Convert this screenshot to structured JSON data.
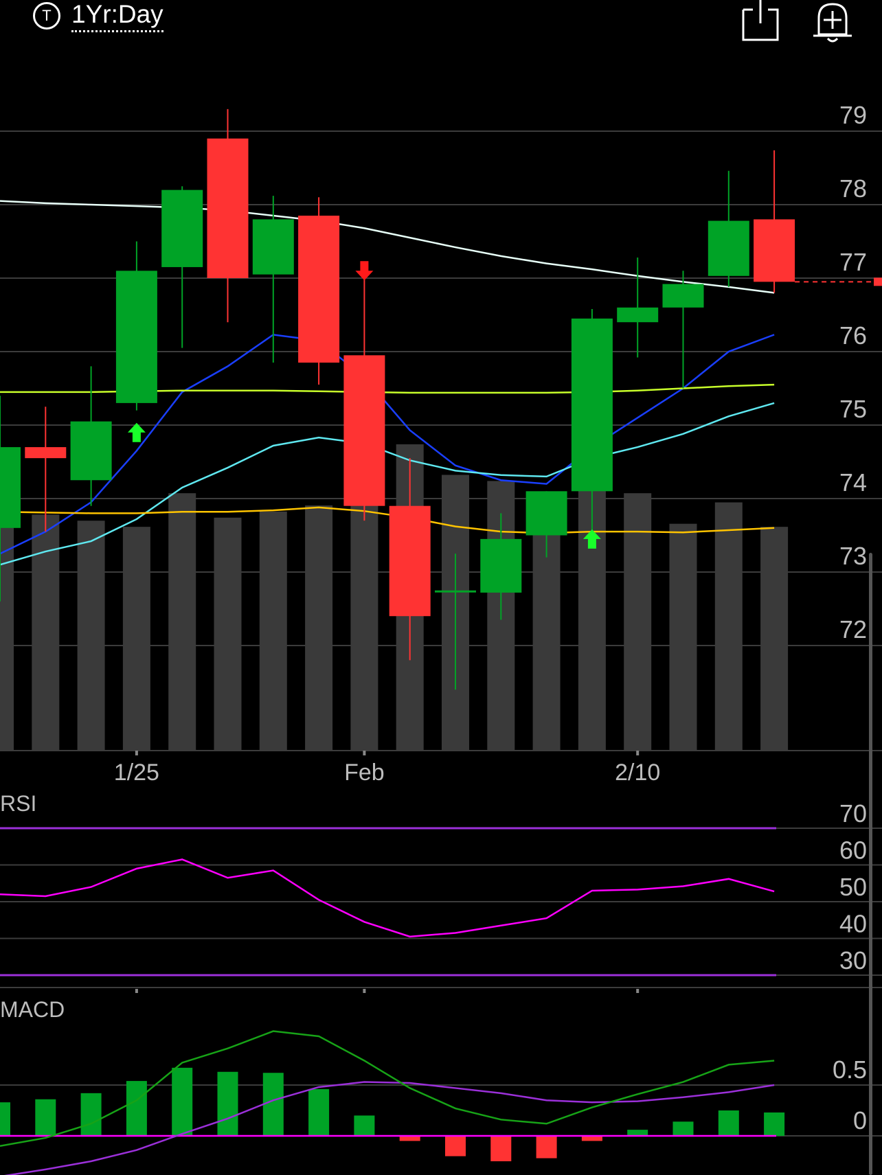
{
  "header": {
    "symbol_icon": "T",
    "period_label": "1Yr:Day",
    "share_icon": "share-icon",
    "alert_icon": "bell-add-icon"
  },
  "colors": {
    "background": "#000000",
    "up": "#00a326",
    "down": "#ff3333",
    "volume": "#3a3a3a",
    "grid": "#3c3c3c",
    "axis_text": "#bdbdbd",
    "rsi_line": "#ff00ff",
    "rsi_band": "#9b30d9",
    "macd_line": "#17a317",
    "macd_signal": "#9b30d9",
    "macd_zero": "#ff00ff",
    "ma_white": "#e8fff8",
    "ma_blue": "#1a3fff",
    "ma_cyan": "#5fe8f0",
    "ma_yellowgreen": "#c8ff2a",
    "ma_orange": "#ffc400"
  },
  "chart_data": {
    "price": {
      "type": "candlestick",
      "y_ticks": [
        79,
        78,
        77,
        76,
        75,
        74,
        73,
        72
      ],
      "x_tick_labels": [
        {
          "index": 3,
          "label": "1/25"
        },
        {
          "index": 8,
          "label": "Feb"
        },
        {
          "index": 14,
          "label": "2/10"
        }
      ],
      "last_price": 76.95,
      "candles": [
        {
          "o": 73.6,
          "h": 75.4,
          "l": 72.6,
          "c": 74.7
        },
        {
          "o": 74.7,
          "h": 75.25,
          "l": 73.55,
          "c": 74.55
        },
        {
          "o": 74.25,
          "h": 75.8,
          "l": 73.9,
          "c": 75.05
        },
        {
          "o": 75.3,
          "h": 77.5,
          "l": 75.2,
          "c": 77.1
        },
        {
          "o": 77.15,
          "h": 78.25,
          "l": 76.05,
          "c": 78.2
        },
        {
          "o": 78.9,
          "h": 79.3,
          "l": 76.4,
          "c": 77.0
        },
        {
          "o": 77.05,
          "h": 78.12,
          "l": 75.85,
          "c": 77.8
        },
        {
          "o": 77.85,
          "h": 78.1,
          "l": 75.55,
          "c": 75.85
        },
        {
          "o": 75.95,
          "h": 77.2,
          "l": 73.7,
          "c": 73.9
        },
        {
          "o": 73.9,
          "h": 74.55,
          "l": 71.8,
          "c": 72.4
        },
        {
          "o": 72.75,
          "h": 73.25,
          "l": 71.4,
          "c": 72.75
        },
        {
          "o": 72.72,
          "h": 73.8,
          "l": 72.35,
          "c": 73.45
        },
        {
          "o": 73.5,
          "h": 74.1,
          "l": 73.2,
          "c": 74.1
        },
        {
          "o": 74.1,
          "h": 76.58,
          "l": 73.55,
          "c": 76.45
        },
        {
          "o": 76.4,
          "h": 77.28,
          "l": 75.92,
          "c": 76.6
        },
        {
          "o": 76.6,
          "h": 77.1,
          "l": 75.5,
          "c": 76.92
        },
        {
          "o": 77.03,
          "h": 78.46,
          "l": 76.88,
          "c": 77.78
        },
        {
          "o": 77.8,
          "h": 78.74,
          "l": 76.8,
          "c": 76.95
        }
      ],
      "volume_relative": [
        0.78,
        0.77,
        0.75,
        0.73,
        0.84,
        0.76,
        0.78,
        0.8,
        0.86,
        1.0,
        0.9,
        0.88,
        0.81,
        0.85,
        0.84,
        0.74,
        0.81,
        0.73
      ],
      "signals": [
        {
          "index": 3,
          "direction": "up",
          "price": 74.9
        },
        {
          "index": 8,
          "direction": "down",
          "price": 77.1
        },
        {
          "index": 13,
          "direction": "up",
          "price": 73.45
        }
      ],
      "moving_averages": [
        {
          "color_key": "ma_white",
          "values": [
            78.05,
            78.02,
            78.0,
            77.98,
            77.96,
            77.92,
            77.85,
            77.78,
            77.68,
            77.55,
            77.42,
            77.3,
            77.2,
            77.12,
            77.03,
            76.95,
            76.88,
            76.8
          ]
        },
        {
          "color_key": "ma_blue",
          "values": [
            73.25,
            73.55,
            73.95,
            74.65,
            75.45,
            75.8,
            76.23,
            76.15,
            75.65,
            74.93,
            74.45,
            74.25,
            74.2,
            74.7,
            75.1,
            75.5,
            76.0,
            76.23
          ]
        },
        {
          "color_key": "ma_cyan",
          "values": [
            73.1,
            73.28,
            73.42,
            73.72,
            74.15,
            74.42,
            74.72,
            74.83,
            74.75,
            74.52,
            74.38,
            74.32,
            74.3,
            74.55,
            74.7,
            74.88,
            75.12,
            75.3
          ]
        },
        {
          "color_key": "ma_yellowgreen",
          "values": [
            75.45,
            75.45,
            75.45,
            75.46,
            75.47,
            75.47,
            75.47,
            75.46,
            75.45,
            75.44,
            75.44,
            75.44,
            75.44,
            75.45,
            75.47,
            75.5,
            75.53,
            75.55
          ]
        },
        {
          "color_key": "ma_orange",
          "values": [
            73.82,
            73.81,
            73.8,
            73.8,
            73.82,
            73.82,
            73.84,
            73.88,
            73.83,
            73.74,
            73.62,
            73.55,
            73.53,
            73.55,
            73.55,
            73.54,
            73.57,
            73.6
          ]
        }
      ]
    },
    "rsi": {
      "type": "line",
      "title": "RSI",
      "y_ticks": [
        70,
        60,
        50,
        40,
        30
      ],
      "bands": [
        70,
        30
      ],
      "values": [
        52,
        51.5,
        54,
        59,
        61.5,
        56.5,
        58.5,
        50.5,
        44.5,
        40.5,
        41.5,
        43.5,
        45.5,
        53,
        53.3,
        54.2,
        56.2,
        52.8
      ]
    },
    "macd": {
      "type": "bar+line",
      "title": "MACD",
      "y_ticks": [
        0.5,
        0
      ],
      "histogram": [
        0.33,
        0.36,
        0.42,
        0.54,
        0.67,
        0.63,
        0.62,
        0.46,
        0.2,
        -0.05,
        -0.2,
        -0.25,
        -0.22,
        -0.05,
        0.06,
        0.14,
        0.25,
        0.23
      ],
      "macd_line": [
        -0.1,
        -0.02,
        0.12,
        0.35,
        0.72,
        0.86,
        1.03,
        0.98,
        0.74,
        0.47,
        0.27,
        0.16,
        0.12,
        0.28,
        0.41,
        0.53,
        0.7,
        0.74
      ],
      "signal_line": [
        -0.4,
        -0.33,
        -0.25,
        -0.14,
        0.02,
        0.17,
        0.35,
        0.48,
        0.53,
        0.52,
        0.47,
        0.42,
        0.35,
        0.33,
        0.34,
        0.38,
        0.43,
        0.5
      ]
    }
  }
}
